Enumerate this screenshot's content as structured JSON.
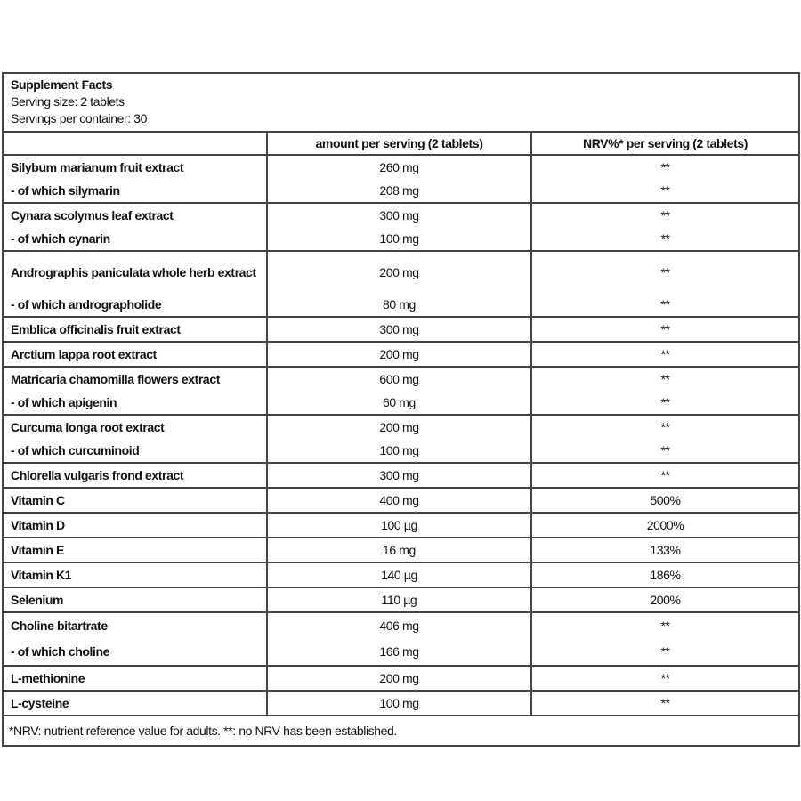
{
  "header": {
    "title": "Supplement Facts",
    "serving_size": "Serving size: 2 tablets",
    "servings_per_container": "Servings per container: 30"
  },
  "columns": {
    "name": "",
    "amount": "amount per serving (2 tablets)",
    "nrv": "NRV%* per serving (2 tablets)"
  },
  "groups": [
    {
      "rows": [
        {
          "name": "Silybum marianum fruit extract",
          "amount": "260 mg",
          "nrv": "**"
        },
        {
          "name": "- of which silymarin",
          "amount": "208 mg",
          "nrv": "**"
        }
      ]
    },
    {
      "rows": [
        {
          "name": "Cynara scolymus leaf extract",
          "amount": "300 mg",
          "nrv": "**"
        },
        {
          "name": "- of which cynarin",
          "amount": "100 mg",
          "nrv": "**"
        }
      ]
    },
    {
      "rows": [
        {
          "name": "Andrographis paniculata whole herb extract",
          "amount": "200 mg",
          "nrv": "**"
        },
        {
          "name": "- of which andrographolide",
          "amount": "80 mg",
          "nrv": "**"
        }
      ]
    },
    {
      "rows": [
        {
          "name": "Emblica officinalis fruit extract",
          "amount": "300 mg",
          "nrv": "**"
        }
      ]
    },
    {
      "rows": [
        {
          "name": "Arctium lappa root extract",
          "amount": "200 mg",
          "nrv": "**"
        }
      ]
    },
    {
      "rows": [
        {
          "name": "Matricaria chamomilla flowers extract",
          "amount": "600 mg",
          "nrv": "**"
        },
        {
          "name": "- of which apigenin",
          "amount": "60 mg",
          "nrv": "**"
        }
      ]
    },
    {
      "rows": [
        {
          "name": "Curcuma longa root extract",
          "amount": "200 mg",
          "nrv": "**"
        },
        {
          "name": "- of which curcuminoid",
          "amount": "100 mg",
          "nrv": "**"
        }
      ]
    },
    {
      "rows": [
        {
          "name": "Chlorella vulgaris frond extract",
          "amount": "300 mg",
          "nrv": "**"
        }
      ]
    },
    {
      "rows": [
        {
          "name": "Vitamin C",
          "amount": "400 mg",
          "nrv": "500%"
        }
      ]
    },
    {
      "rows": [
        {
          "name": "Vitamin D",
          "amount": "100 µg",
          "nrv": "2000%"
        }
      ]
    },
    {
      "rows": [
        {
          "name": "Vitamin E",
          "amount": "16 mg",
          "nrv": "133%"
        }
      ]
    },
    {
      "rows": [
        {
          "name": "Vitamin K1",
          "amount": "140 µg",
          "nrv": "186%"
        }
      ]
    },
    {
      "rows": [
        {
          "name": "Selenium",
          "amount": "110 µg",
          "nrv": "200%"
        }
      ]
    },
    {
      "rows": [
        {
          "name": "Choline bitartrate",
          "amount": "406 mg",
          "nrv": "**"
        },
        {
          "name": "- of which choline",
          "amount": "166 mg",
          "nrv": "**"
        }
      ]
    },
    {
      "rows": [
        {
          "name": "L-methionine",
          "amount": "200 mg",
          "nrv": "**"
        }
      ]
    },
    {
      "rows": [
        {
          "name": "L-cysteine",
          "amount": "100 mg",
          "nrv": "**"
        }
      ]
    }
  ],
  "footnote": "*NRV: nutrient reference value for adults. **: no NRV has been established."
}
